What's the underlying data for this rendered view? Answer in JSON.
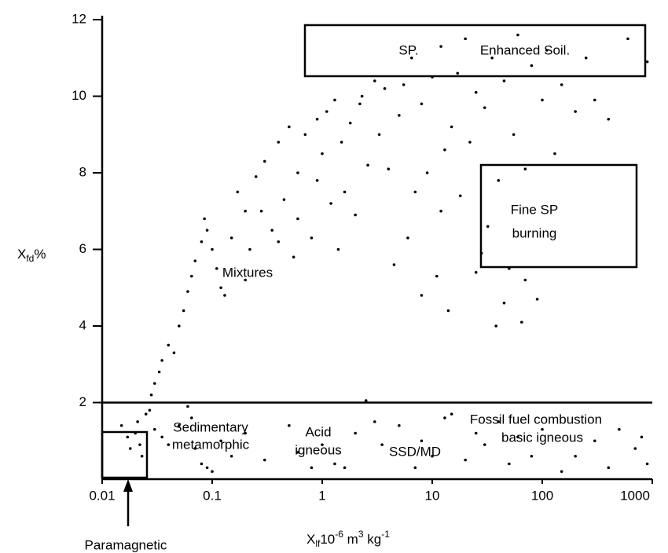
{
  "chart_data": {
    "type": "scatter",
    "color": "#000000",
    "log_x": true,
    "y_label": [
      "X",
      "fd",
      "%"
    ],
    "x_label": [
      "X",
      "lf",
      "10",
      "-6",
      " m",
      "3",
      " kg",
      "-1"
    ],
    "xlim": [
      0.01,
      1000
    ],
    "xticks": [
      0.01,
      0.1,
      1,
      10,
      100,
      1000
    ],
    "ylim": [
      0,
      12
    ],
    "yticks": [
      2,
      4,
      6,
      8,
      10,
      12
    ],
    "annotations": [
      "SP.",
      "Enhanced Soil.",
      "Fine SP",
      "burning",
      "Mixtures",
      "Sedimentary",
      "metamorphic",
      "Acid",
      "igneous",
      "SSD/MD",
      "Fossil fuel combustion",
      "basic igneous",
      "Paramagnetic"
    ],
    "x": [
      0.015,
      0.017,
      0.018,
      0.02,
      0.022,
      0.023,
      0.021,
      0.025,
      0.027,
      0.03,
      0.035,
      0.04,
      0.05,
      0.06,
      0.065,
      0.07,
      0.08,
      0.09,
      0.1,
      0.12,
      0.15,
      0.2,
      0.3,
      0.5,
      0.6,
      0.8,
      1.0,
      1.3,
      1.6,
      2,
      2.5,
      3,
      3.5,
      5,
      7,
      8,
      10,
      13,
      15,
      20,
      25,
      30,
      40,
      50,
      60,
      80,
      100,
      150,
      200,
      300,
      400,
      500,
      700,
      800,
      900,
      0.028,
      0.03,
      0.033,
      0.035,
      0.04,
      0.045,
      0.05,
      0.055,
      0.06,
      0.065,
      0.07,
      0.08,
      0.085,
      0.09,
      0.1,
      0.11,
      0.12,
      0.13,
      0.15,
      0.17,
      0.2,
      0.22,
      0.25,
      0.28,
      0.3,
      0.35,
      0.4,
      0.45,
      0.5,
      0.55,
      0.6,
      0.7,
      0.8,
      0.9,
      1.0,
      1.1,
      1.2,
      1.3,
      1.5,
      1.6,
      1.8,
      2.0,
      2.3,
      2.6,
      3.0,
      3.3,
      3.7,
      0.2,
      0.4,
      0.6,
      0.9,
      1.4,
      2.2,
      4,
      4.5,
      5,
      5.5,
      6,
      6.5,
      7,
      8,
      9,
      10,
      11,
      12,
      13,
      14,
      15,
      17,
      18,
      20,
      22,
      25,
      28,
      30,
      32,
      35,
      38,
      40,
      45,
      50,
      55,
      60,
      65,
      70,
      80,
      90,
      100,
      110,
      130,
      150,
      200,
      250,
      300,
      400,
      600,
      900,
      8,
      12,
      25,
      45,
      70
    ],
    "values": [
      1.4,
      1.1,
      0.8,
      1.2,
      0.9,
      0.6,
      1.5,
      1.7,
      1.8,
      1.3,
      1.1,
      0.9,
      1.4,
      1.9,
      1.6,
      0.8,
      0.4,
      0.3,
      0.2,
      1.0,
      0.6,
      1.2,
      0.5,
      1.4,
      0.7,
      0.3,
      0.9,
      0.4,
      0.3,
      1.2,
      2.05,
      1.5,
      0.9,
      1.4,
      0.3,
      1.0,
      0.6,
      1.6,
      1.7,
      0.5,
      1.2,
      0.9,
      1.5,
      0.4,
      1.1,
      0.6,
      1.3,
      0.2,
      0.6,
      1.0,
      0.3,
      1.3,
      0.8,
      1.1,
      0.4,
      2.2,
      2.5,
      2.8,
      3.1,
      3.5,
      3.3,
      4.0,
      4.4,
      4.9,
      5.3,
      5.7,
      6.2,
      6.8,
      6.5,
      6.0,
      5.5,
      5.0,
      4.8,
      6.3,
      7.5,
      5.2,
      6.0,
      7.9,
      7.0,
      8.3,
      6.5,
      8.8,
      7.3,
      9.2,
      5.8,
      8.0,
      9.0,
      6.3,
      9.4,
      8.5,
      9.6,
      7.2,
      9.9,
      8.8,
      7.5,
      9.3,
      6.9,
      10.0,
      8.2,
      10.4,
      9.0,
      10.2,
      7.0,
      6.2,
      6.8,
      7.8,
      6.0,
      9.8,
      8.1,
      5.6,
      9.5,
      10.3,
      6.3,
      11.0,
      7.5,
      9.8,
      8.0,
      10.5,
      5.3,
      11.3,
      8.6,
      4.4,
      9.2,
      10.6,
      7.4,
      11.5,
      8.8,
      10.1,
      5.9,
      9.7,
      6.6,
      11.0,
      4.0,
      7.8,
      10.4,
      5.5,
      9.0,
      11.6,
      4.1,
      8.1,
      10.8,
      4.7,
      9.9,
      11.2,
      8.5,
      10.3,
      9.6,
      11.0,
      9.9,
      9.4,
      11.5,
      10.9,
      4.8,
      7.0,
      5.4,
      4.6,
      5.2
    ]
  }
}
